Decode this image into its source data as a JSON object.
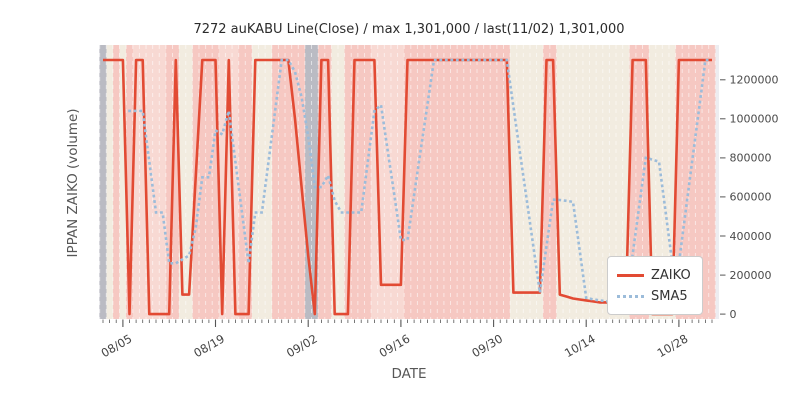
{
  "chart": {
    "title": "7272 auKABU Line(Close) / max 1,301,000 / last(11/02) 1,301,000",
    "xlabel": "DATE",
    "ylabel": "IPPAN ZAIKO (volume)"
  },
  "legend": {
    "items": [
      {
        "label": "ZAIKO",
        "style": "solid",
        "color": "#e24a33"
      },
      {
        "label": "SMA5",
        "style": "dotted",
        "color": "#9cbcda"
      }
    ],
    "position": "lower right"
  },
  "chart_data": {
    "type": "line",
    "title": "7272 auKABU Line(Close) / max 1,301,000 / last(11/02) 1,301,000",
    "xlabel": "DATE",
    "ylabel": "IPPAN ZAIKO (volume)",
    "max_value": 1301000,
    "last_date": "11/02",
    "last_value": 1301000,
    "x_tick_labels": [
      "08/05",
      "08/19",
      "09/02",
      "09/16",
      "09/30",
      "10/14",
      "10/28"
    ],
    "y_ticks": [
      0,
      200000,
      400000,
      600000,
      800000,
      1000000,
      1200000
    ],
    "ylim": [
      -25000,
      1378000
    ],
    "grid": "white dashed vertical line at every day boundary",
    "dates": [
      "08/02",
      "08/03",
      "08/04",
      "08/05",
      "08/06",
      "08/07",
      "08/08",
      "08/09",
      "08/10",
      "08/11",
      "08/12",
      "08/13",
      "08/14",
      "08/15",
      "08/16",
      "08/17",
      "08/18",
      "08/19",
      "08/20",
      "08/21",
      "08/22",
      "08/23",
      "08/24",
      "08/25",
      "08/26",
      "08/27",
      "08/28",
      "08/29",
      "08/30",
      "08/31",
      "09/01",
      "09/02",
      "09/03",
      "09/04",
      "09/05",
      "09/06",
      "09/07",
      "09/08",
      "09/09",
      "09/10",
      "09/11",
      "09/12",
      "09/13",
      "09/14",
      "09/15",
      "09/16",
      "09/17",
      "09/18",
      "09/19",
      "09/20",
      "09/21",
      "09/22",
      "09/23",
      "09/24",
      "09/25",
      "09/26",
      "09/27",
      "09/28",
      "09/29",
      "09/30",
      "10/01",
      "10/02",
      "10/03",
      "10/04",
      "10/05",
      "10/06",
      "10/07",
      "10/08",
      "10/09",
      "10/10",
      "10/11",
      "10/12",
      "10/13",
      "10/14",
      "10/15",
      "10/16",
      "10/17",
      "10/18",
      "10/19",
      "10/20",
      "10/21",
      "10/22",
      "10/23",
      "10/24",
      "10/25",
      "10/26",
      "10/27",
      "10/28",
      "10/29",
      "10/30",
      "10/31",
      "11/01",
      "11/02"
    ],
    "series": [
      {
        "name": "ZAIKO",
        "color": "#e24a33",
        "style": "solid",
        "values": [
          1301000,
          1301000,
          1301000,
          1301000,
          0,
          1301000,
          1301000,
          0,
          0,
          0,
          0,
          1301000,
          100000,
          100000,
          700000,
          1301000,
          1301000,
          1301000,
          0,
          1301000,
          0,
          0,
          0,
          1301000,
          1301000,
          1301000,
          1301000,
          1301000,
          1301000,
          1000000,
          650000,
          300000,
          0,
          1301000,
          1301000,
          0,
          0,
          0,
          1301000,
          1301000,
          1301000,
          1301000,
          150000,
          150000,
          150000,
          150000,
          1301000,
          1301000,
          1301000,
          1301000,
          1301000,
          1301000,
          1301000,
          1301000,
          1301000,
          1301000,
          1301000,
          1301000,
          1301000,
          1301000,
          1301000,
          1301000,
          110000,
          110000,
          110000,
          110000,
          110000,
          1301000,
          1301000,
          100000,
          90000,
          80000,
          75000,
          70000,
          65000,
          60000,
          60000,
          55000,
          55000,
          50000,
          1301000,
          1301000,
          1301000,
          0,
          0,
          0,
          0,
          1301000,
          1301000,
          1301000,
          1301000,
          1301000,
          1301000
        ]
      },
      {
        "name": "SMA5",
        "color": "#9cbcda",
        "style": "dotted",
        "derived": "5-day rolling mean of ZAIKO, first point on 5th day",
        "window": 5
      }
    ],
    "band_colors": {
      "P": "#f6c8c2",
      "L": "#f8d9d3",
      "C": "#f2ece0",
      "G": "#babbc3"
    },
    "day_bands": "GCPCPLLLLLPPCCPPPPLLLPPCCCPPPPPGGPPCCPPPPLLLLLPPPPPPPPPPPPPPPPCCCCCPPCCCCCCCCCCCPPPCCCCPPPPPP",
    "plot_background": "#ededf1"
  }
}
